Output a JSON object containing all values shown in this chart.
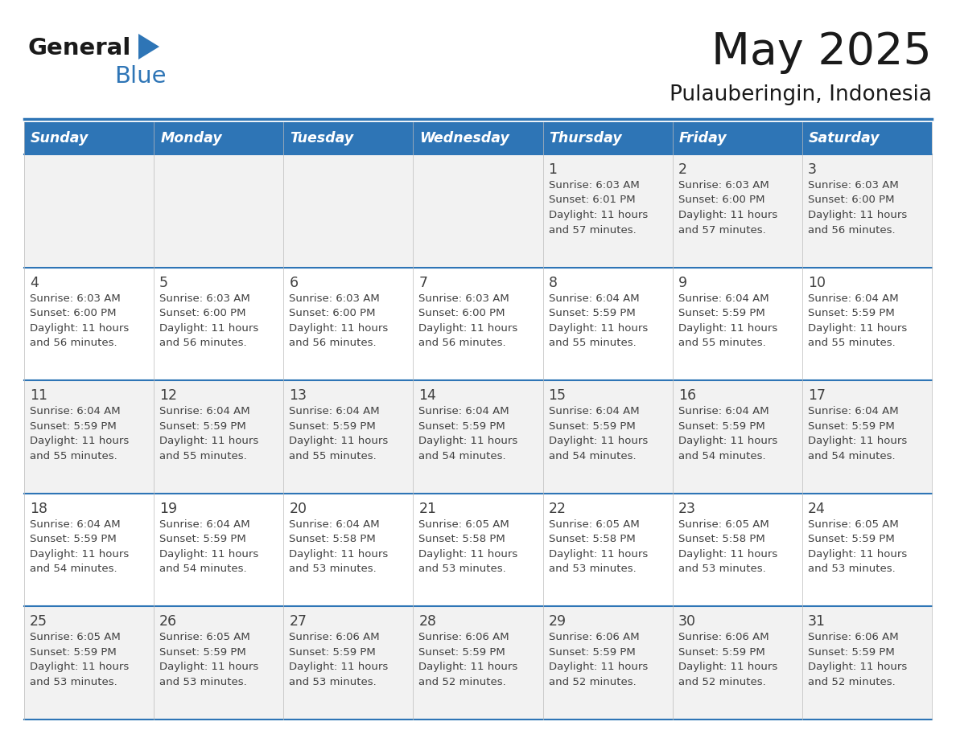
{
  "title": "May 2025",
  "subtitle": "Pulauberingin, Indonesia",
  "days_of_week": [
    "Sunday",
    "Monday",
    "Tuesday",
    "Wednesday",
    "Thursday",
    "Friday",
    "Saturday"
  ],
  "header_bg": "#2E75B6",
  "header_text": "#FFFFFF",
  "row_bg_light": "#F2F2F2",
  "row_bg_white": "#FFFFFF",
  "separator_color": "#2E75B6",
  "text_color": "#404040",
  "calendar_data": [
    [
      {
        "day": "",
        "sunrise": "",
        "sunset": "",
        "daylight": ""
      },
      {
        "day": "",
        "sunrise": "",
        "sunset": "",
        "daylight": ""
      },
      {
        "day": "",
        "sunrise": "",
        "sunset": "",
        "daylight": ""
      },
      {
        "day": "",
        "sunrise": "",
        "sunset": "",
        "daylight": ""
      },
      {
        "day": "1",
        "sunrise": "6:03 AM",
        "sunset": "6:01 PM",
        "daylight": "11 hours and 57 minutes."
      },
      {
        "day": "2",
        "sunrise": "6:03 AM",
        "sunset": "6:00 PM",
        "daylight": "11 hours and 57 minutes."
      },
      {
        "day": "3",
        "sunrise": "6:03 AM",
        "sunset": "6:00 PM",
        "daylight": "11 hours and 56 minutes."
      }
    ],
    [
      {
        "day": "4",
        "sunrise": "6:03 AM",
        "sunset": "6:00 PM",
        "daylight": "11 hours and 56 minutes."
      },
      {
        "day": "5",
        "sunrise": "6:03 AM",
        "sunset": "6:00 PM",
        "daylight": "11 hours and 56 minutes."
      },
      {
        "day": "6",
        "sunrise": "6:03 AM",
        "sunset": "6:00 PM",
        "daylight": "11 hours and 56 minutes."
      },
      {
        "day": "7",
        "sunrise": "6:03 AM",
        "sunset": "6:00 PM",
        "daylight": "11 hours and 56 minutes."
      },
      {
        "day": "8",
        "sunrise": "6:04 AM",
        "sunset": "5:59 PM",
        "daylight": "11 hours and 55 minutes."
      },
      {
        "day": "9",
        "sunrise": "6:04 AM",
        "sunset": "5:59 PM",
        "daylight": "11 hours and 55 minutes."
      },
      {
        "day": "10",
        "sunrise": "6:04 AM",
        "sunset": "5:59 PM",
        "daylight": "11 hours and 55 minutes."
      }
    ],
    [
      {
        "day": "11",
        "sunrise": "6:04 AM",
        "sunset": "5:59 PM",
        "daylight": "11 hours and 55 minutes."
      },
      {
        "day": "12",
        "sunrise": "6:04 AM",
        "sunset": "5:59 PM",
        "daylight": "11 hours and 55 minutes."
      },
      {
        "day": "13",
        "sunrise": "6:04 AM",
        "sunset": "5:59 PM",
        "daylight": "11 hours and 55 minutes."
      },
      {
        "day": "14",
        "sunrise": "6:04 AM",
        "sunset": "5:59 PM",
        "daylight": "11 hours and 54 minutes."
      },
      {
        "day": "15",
        "sunrise": "6:04 AM",
        "sunset": "5:59 PM",
        "daylight": "11 hours and 54 minutes."
      },
      {
        "day": "16",
        "sunrise": "6:04 AM",
        "sunset": "5:59 PM",
        "daylight": "11 hours and 54 minutes."
      },
      {
        "day": "17",
        "sunrise": "6:04 AM",
        "sunset": "5:59 PM",
        "daylight": "11 hours and 54 minutes."
      }
    ],
    [
      {
        "day": "18",
        "sunrise": "6:04 AM",
        "sunset": "5:59 PM",
        "daylight": "11 hours and 54 minutes."
      },
      {
        "day": "19",
        "sunrise": "6:04 AM",
        "sunset": "5:59 PM",
        "daylight": "11 hours and 54 minutes."
      },
      {
        "day": "20",
        "sunrise": "6:04 AM",
        "sunset": "5:58 PM",
        "daylight": "11 hours and 53 minutes."
      },
      {
        "day": "21",
        "sunrise": "6:05 AM",
        "sunset": "5:58 PM",
        "daylight": "11 hours and 53 minutes."
      },
      {
        "day": "22",
        "sunrise": "6:05 AM",
        "sunset": "5:58 PM",
        "daylight": "11 hours and 53 minutes."
      },
      {
        "day": "23",
        "sunrise": "6:05 AM",
        "sunset": "5:58 PM",
        "daylight": "11 hours and 53 minutes."
      },
      {
        "day": "24",
        "sunrise": "6:05 AM",
        "sunset": "5:59 PM",
        "daylight": "11 hours and 53 minutes."
      }
    ],
    [
      {
        "day": "25",
        "sunrise": "6:05 AM",
        "sunset": "5:59 PM",
        "daylight": "11 hours and 53 minutes."
      },
      {
        "day": "26",
        "sunrise": "6:05 AM",
        "sunset": "5:59 PM",
        "daylight": "11 hours and 53 minutes."
      },
      {
        "day": "27",
        "sunrise": "6:06 AM",
        "sunset": "5:59 PM",
        "daylight": "11 hours and 53 minutes."
      },
      {
        "day": "28",
        "sunrise": "6:06 AM",
        "sunset": "5:59 PM",
        "daylight": "11 hours and 52 minutes."
      },
      {
        "day": "29",
        "sunrise": "6:06 AM",
        "sunset": "5:59 PM",
        "daylight": "11 hours and 52 minutes."
      },
      {
        "day": "30",
        "sunrise": "6:06 AM",
        "sunset": "5:59 PM",
        "daylight": "11 hours and 52 minutes."
      },
      {
        "day": "31",
        "sunrise": "6:06 AM",
        "sunset": "5:59 PM",
        "daylight": "11 hours and 52 minutes."
      }
    ]
  ],
  "logo_general_color": "#1a1a1a",
  "logo_blue_color": "#2E75B6",
  "logo_triangle_color": "#2E75B6"
}
